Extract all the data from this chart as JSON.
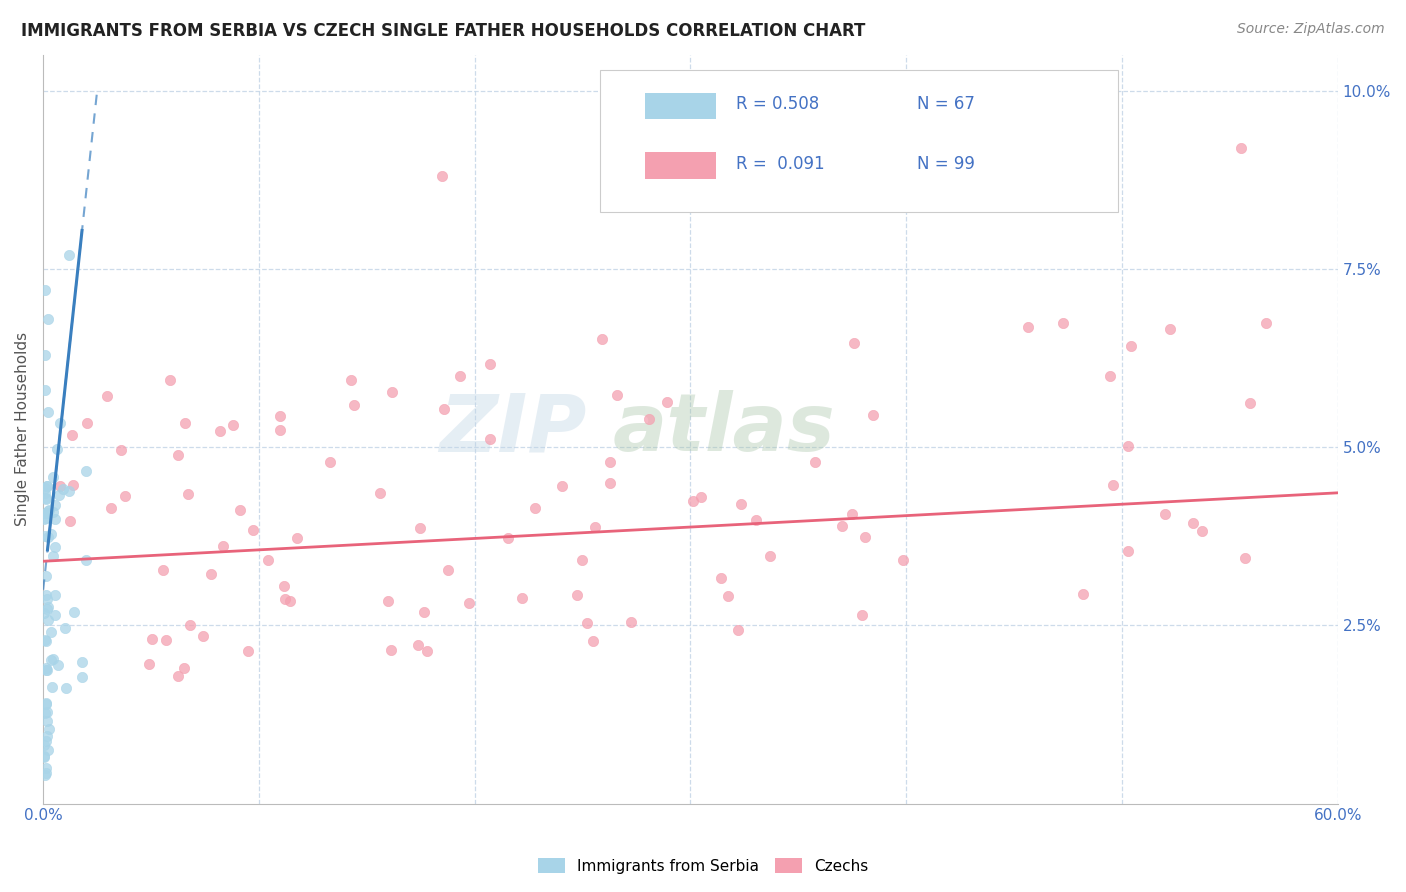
{
  "title": "IMMIGRANTS FROM SERBIA VS CZECH SINGLE FATHER HOUSEHOLDS CORRELATION CHART",
  "source": "Source: ZipAtlas.com",
  "ylabel": "Single Father Households",
  "xlim": [
    0.0,
    0.6
  ],
  "ylim": [
    0.0,
    0.105
  ],
  "xtick_positions": [
    0.0,
    0.1,
    0.2,
    0.3,
    0.4,
    0.5,
    0.6
  ],
  "xtick_labels": [
    "0.0%",
    "",
    "",
    "",
    "",
    "",
    "60.0%"
  ],
  "ytick_positions": [
    0.0,
    0.025,
    0.05,
    0.075,
    0.1
  ],
  "ytick_labels": [
    "",
    "2.5%",
    "5.0%",
    "7.5%",
    "10.0%"
  ],
  "serbia_color": "#a8d4e8",
  "czech_color": "#f4a0b0",
  "serbia_line_color": "#3a7fbf",
  "czech_line_color": "#e8637a",
  "R_serbia": 0.508,
  "N_serbia": 67,
  "R_czech": 0.091,
  "N_czech": 99,
  "legend_labels": [
    "Immigrants from Serbia",
    "Czechs"
  ],
  "serbia_seed": 42,
  "czech_seed": 7,
  "watermark_zip_color": "#c5d8e8",
  "watermark_atlas_color": "#b0c8b0",
  "grid_color": "#c8d8e8",
  "title_color": "#222222",
  "source_color": "#888888",
  "ylabel_color": "#555555",
  "tick_color": "#4472c4"
}
